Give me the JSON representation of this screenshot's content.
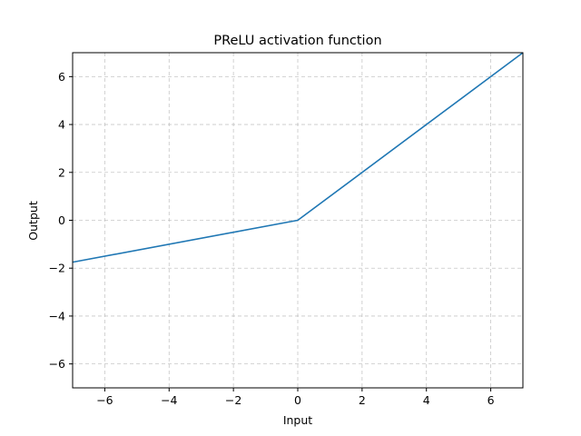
{
  "chart_data": {
    "type": "line",
    "title": "PReLU activation function",
    "xlabel": "Input",
    "ylabel": "Output",
    "xlim": [
      -7,
      7
    ],
    "ylim": [
      -7,
      7
    ],
    "x_ticks": [
      -6,
      -4,
      -2,
      0,
      2,
      4,
      6
    ],
    "y_ticks": [
      -6,
      -4,
      -2,
      0,
      2,
      4,
      6
    ],
    "grid": true,
    "series": [
      {
        "color": "#1f77b4",
        "x": [
          -7,
          0,
          7
        ],
        "y": [
          -1.75,
          0,
          7
        ]
      }
    ]
  }
}
